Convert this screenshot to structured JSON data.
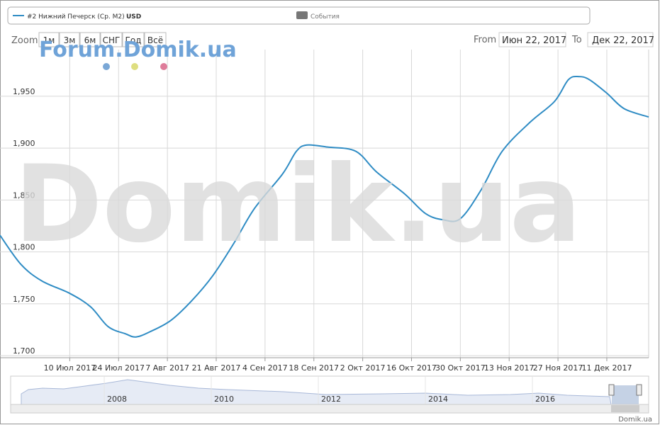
{
  "legend_bar": {
    "series_label": "#2 Нижний Печерск (Ср. М2)",
    "currency": "USD",
    "events": "События"
  },
  "controls": {
    "zoom": "Zoom",
    "buttons": [
      "1м",
      "3м",
      "6м",
      "СНГ",
      "Год",
      "Всё"
    ],
    "from": "From",
    "from_value": "Июн 22, 2017",
    "to": "To",
    "to_value": "Дек 22, 2017"
  },
  "watermarks": {
    "forum": "Forum.Domik.ua",
    "main": "Domik.ua",
    "credit": "Domik.ua"
  },
  "navigator": {
    "years": [
      "2008",
      "2010",
      "2012",
      "2014",
      "2016"
    ]
  },
  "chart_data": {
    "type": "line",
    "x": [
      -2,
      4,
      10,
      18,
      24,
      29,
      34,
      37,
      41,
      47,
      53,
      59,
      65,
      71,
      79,
      83,
      86,
      92,
      100,
      106,
      114,
      120,
      125,
      130,
      136,
      142,
      150,
      157,
      161,
      164,
      167,
      172,
      177,
      184
    ],
    "series": [
      {
        "name": "#2 Нижний Печерск (Ср. М2)",
        "color": "#2f8cc4",
        "values": [
          1816,
          1788,
          1772,
          1760,
          1747,
          1728,
          1721,
          1718,
          1723,
          1734,
          1753,
          1777,
          1808,
          1842,
          1875,
          1897,
          1903,
          1901,
          1897,
          1877,
          1856,
          1837,
          1831,
          1832,
          1860,
          1897,
          1925,
          1945,
          1966,
          1969,
          1966,
          1953,
          1938,
          1930
        ]
      }
    ],
    "xlim": [
      -2,
      184
    ],
    "xticks": [
      {
        "value": 18,
        "label": "10 Июл 2017"
      },
      {
        "value": 32,
        "label": "24 Июл 2017"
      },
      {
        "value": 46,
        "label": "7 Авг 2017"
      },
      {
        "value": 60,
        "label": "21 Авг 2017"
      },
      {
        "value": 74,
        "label": "4 Сен 2017"
      },
      {
        "value": 88,
        "label": "18 Сен 2017"
      },
      {
        "value": 102,
        "label": "2 Окт 2017"
      },
      {
        "value": 116,
        "label": "16 Окт 2017"
      },
      {
        "value": 130,
        "label": "30 Окт 2017"
      },
      {
        "value": 144,
        "label": "13 Ноя 2017"
      },
      {
        "value": 158,
        "label": "27 Ноя 2017"
      },
      {
        "value": 172,
        "label": "11 Дек 2017"
      }
    ],
    "ylim": [
      1698,
      1995
    ],
    "yticks": [
      {
        "value": 1700,
        "label": "1,700"
      },
      {
        "value": 1750,
        "label": "1,750"
      },
      {
        "value": 1800,
        "label": "1,800"
      },
      {
        "value": 1850,
        "label": "1,850"
      },
      {
        "value": 1900,
        "label": "1,900"
      },
      {
        "value": 1950,
        "label": "1,950"
      }
    ],
    "grid": true
  }
}
